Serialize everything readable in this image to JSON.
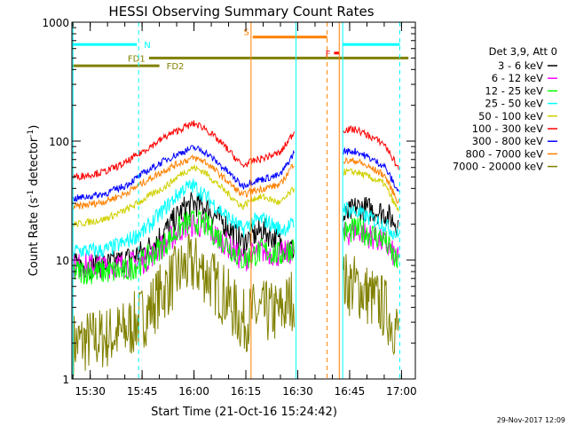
{
  "chart_data": {
    "type": "line",
    "title": "HESSI Observing Summary Count Rates",
    "xlabel": "Start Time (21-Oct-16 15:24:42)",
    "ylabel_main": "Count Rate (s",
    "ylabel_sup1": "-1",
    "ylabel_mid": " detector",
    "ylabel_sup2": "-1",
    "ylabel_end": ")",
    "y_scale": "log",
    "ylim": [
      1,
      1000
    ],
    "y_ticks": [
      {
        "value": 1,
        "label": "1"
      },
      {
        "value": 10,
        "label": "10"
      },
      {
        "value": 100,
        "label": "100"
      },
      {
        "value": 1000,
        "label": "1000"
      }
    ],
    "xlim": [
      "15:24:42",
      "17:04:00"
    ],
    "x_ticks": [
      "15:30",
      "15:45",
      "16:00",
      "16:15",
      "16:30",
      "16:45",
      "17:00"
    ],
    "legend_position": "right",
    "legend_header": "Det 3,9, Att 0",
    "series": [
      {
        "name": "3 - 6 keV",
        "color": "#000000",
        "x": [
          "15:26",
          "15:34",
          "15:40",
          "15:46",
          "15:52",
          "15:57",
          "16:00",
          "16:03",
          "16:09",
          "16:14",
          "16:17",
          "16:20",
          "16:25",
          "16:29",
          "16:43",
          "16:47",
          "16:55",
          "16:59"
        ],
        "values": [
          9,
          9,
          10,
          12,
          18,
          27,
          30,
          28,
          20,
          14,
          16,
          18,
          14,
          12,
          22,
          28,
          25,
          20
        ]
      },
      {
        "name": "6 - 12 keV",
        "color": "#ff00ff",
        "x": [
          "15:26",
          "15:34",
          "15:40",
          "15:46",
          "15:52",
          "15:57",
          "16:00",
          "16:03",
          "16:09",
          "16:14",
          "16:17",
          "16:20",
          "16:25",
          "16:29",
          "16:43",
          "16:47",
          "16:55",
          "16:59"
        ],
        "values": [
          9,
          9,
          9,
          10,
          14,
          19,
          20,
          19,
          14,
          10,
          11,
          12,
          11,
          12,
          16,
          18,
          14,
          10
        ]
      },
      {
        "name": "12 - 25 keV",
        "color": "#00ff00",
        "x": [
          "15:26",
          "15:34",
          "15:40",
          "15:46",
          "15:52",
          "15:57",
          "16:00",
          "16:03",
          "16:09",
          "16:14",
          "16:17",
          "16:20",
          "16:25",
          "16:29",
          "16:43",
          "16:47",
          "16:55",
          "16:59"
        ],
        "values": [
          8,
          8,
          8,
          10,
          14,
          20,
          21,
          20,
          14,
          10,
          11,
          12,
          11,
          13,
          17,
          18,
          15,
          9
        ]
      },
      {
        "name": "25 - 50 keV",
        "color": "#00ffff",
        "x": [
          "15:26",
          "15:34",
          "15:40",
          "15:46",
          "15:52",
          "15:57",
          "16:00",
          "16:03",
          "16:09",
          "16:14",
          "16:17",
          "16:20",
          "16:25",
          "16:29",
          "16:43",
          "16:47",
          "16:55",
          "16:59"
        ],
        "values": [
          12,
          12,
          14,
          18,
          28,
          40,
          42,
          35,
          24,
          18,
          21,
          22,
          18,
          20,
          28,
          25,
          20,
          16
        ]
      },
      {
        "name": "50 - 100 keV",
        "color": "#d0d000",
        "x": [
          "15:26",
          "15:34",
          "15:40",
          "15:46",
          "15:52",
          "15:57",
          "16:00",
          "16:03",
          "16:09",
          "16:14",
          "16:17",
          "16:20",
          "16:25",
          "16:29",
          "16:43",
          "16:47",
          "16:55",
          "16:59"
        ],
        "values": [
          20,
          22,
          26,
          33,
          42,
          55,
          60,
          55,
          38,
          28,
          33,
          34,
          30,
          40,
          55,
          55,
          44,
          26
        ]
      },
      {
        "name": "100 - 300 keV",
        "color": "#ff0000",
        "x": [
          "15:26",
          "15:34",
          "15:40",
          "15:46",
          "15:52",
          "15:57",
          "16:00",
          "16:03",
          "16:09",
          "16:14",
          "16:17",
          "16:20",
          "16:25",
          "16:29",
          "16:43",
          "16:47",
          "16:55",
          "16:59"
        ],
        "values": [
          50,
          55,
          65,
          85,
          110,
          130,
          140,
          130,
          90,
          62,
          68,
          72,
          80,
          120,
          125,
          125,
          95,
          60
        ]
      },
      {
        "name": "300 - 800 keV",
        "color": "#0000ff",
        "x": [
          "15:26",
          "15:34",
          "15:40",
          "15:46",
          "15:52",
          "15:57",
          "16:00",
          "16:03",
          "16:09",
          "16:14",
          "16:17",
          "16:20",
          "16:25",
          "16:29",
          "16:43",
          "16:47",
          "16:55",
          "16:59"
        ],
        "values": [
          33,
          36,
          42,
          55,
          70,
          82,
          88,
          82,
          58,
          42,
          46,
          48,
          52,
          80,
          82,
          82,
          62,
          38
        ]
      },
      {
        "name": "800 - 7000 keV",
        "color": "#ff8000",
        "x": [
          "15:26",
          "15:34",
          "15:40",
          "15:46",
          "15:52",
          "15:57",
          "16:00",
          "16:03",
          "16:09",
          "16:14",
          "16:17",
          "16:20",
          "16:25",
          "16:29",
          "16:43",
          "16:47",
          "16:55",
          "16:59"
        ],
        "values": [
          28,
          31,
          36,
          46,
          58,
          68,
          72,
          68,
          48,
          35,
          38,
          40,
          43,
          66,
          68,
          68,
          52,
          31
        ]
      },
      {
        "name": "7000 - 20000 keV",
        "color": "#808000",
        "x": [
          "15:26",
          "15:34",
          "15:40",
          "15:46",
          "15:52",
          "15:57",
          "16:00",
          "16:03",
          "16:09",
          "16:14",
          "16:17",
          "16:20",
          "16:25",
          "16:29",
          "16:43",
          "16:47",
          "16:55",
          "16:59"
        ],
        "values": [
          2,
          2.2,
          2.5,
          3.5,
          6,
          8.5,
          9,
          8,
          5,
          3,
          3.5,
          3.6,
          3.6,
          5,
          6.5,
          6,
          4,
          2.5
        ]
      }
    ],
    "annotations": [
      {
        "label": "N",
        "color": "#00ffff",
        "value": 650,
        "start": "15:24:42",
        "end": "15:43:30"
      },
      {
        "label": "N",
        "color": "#00ffff",
        "value": 650,
        "start": "16:43:00",
        "end": "16:59:30"
      },
      {
        "label": "S",
        "color": "#ff8000",
        "value": 750,
        "start": "16:17:00",
        "end": "16:38:30"
      },
      {
        "label": "F",
        "color": "#ff0000",
        "value": 550,
        "start": "16:40:30",
        "end": "16:42:00"
      },
      {
        "label": "FD1",
        "color": "#808000",
        "value": 500,
        "start": "15:47:00",
        "end": "17:02:00"
      },
      {
        "label": "FD2",
        "color": "#808000",
        "value": 430,
        "start": "15:24:42",
        "end": "15:50:00"
      }
    ],
    "vertical_lines": [
      {
        "time": "15:25:00",
        "color": "#00ffff",
        "style": "solid"
      },
      {
        "time": "15:44:00",
        "color": "#00ffff",
        "style": "dashed"
      },
      {
        "time": "16:16:30",
        "color": "#ff8000",
        "style": "solid"
      },
      {
        "time": "16:29:30",
        "color": "#00ffff",
        "style": "solid"
      },
      {
        "time": "16:38:30",
        "color": "#ff8000",
        "style": "dashed"
      },
      {
        "time": "16:42:00",
        "color": "#ff8000",
        "style": "solid"
      },
      {
        "time": "16:43:00",
        "color": "#00ffff",
        "style": "solid"
      },
      {
        "time": "16:59:30",
        "color": "#00ffff",
        "style": "dashed"
      }
    ],
    "gaps": [
      [
        "16:30:30",
        "16:42:30"
      ]
    ]
  },
  "footer_timestamp": "29-Nov-2017 12:09"
}
